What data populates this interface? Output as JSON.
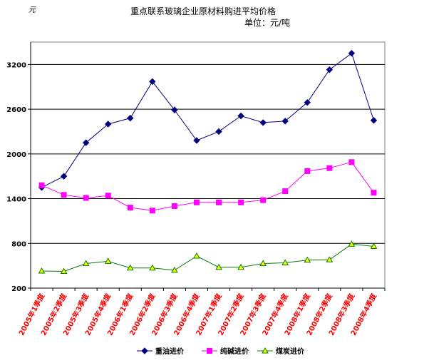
{
  "chart_data": {
    "type": "line",
    "title": "重点联系玻璃企业原材料购进平均价格",
    "subtitle": "单位：元/吨",
    "ylabel": "元",
    "xlabel": "",
    "ylim": [
      200,
      3500
    ],
    "yticks": [
      200,
      800,
      1400,
      2000,
      2600,
      3200
    ],
    "grid": true,
    "legend_position": "bottom",
    "categories": [
      "2005年1季度",
      "2005年2季度",
      "2005年3季度",
      "2005年4季度",
      "2006年1季度",
      "2006年2季度",
      "2006年3季度",
      "2006年4季度",
      "2007年1季度",
      "2007年2季度",
      "2007年3季度",
      "2007年4季度",
      "2008年1季度",
      "2008年2季度",
      "2008年3季度",
      "2008年4季度"
    ],
    "series": [
      {
        "name": "重油进价",
        "color": "#000080",
        "marker": "diamond",
        "values": [
          1550,
          1700,
          2150,
          2400,
          2480,
          2970,
          2590,
          2180,
          2300,
          2510,
          2420,
          2440,
          2690,
          3130,
          3350,
          2450
        ]
      },
      {
        "name": "纯碱进价",
        "color": "#ff00ff",
        "marker": "square",
        "values": [
          1580,
          1450,
          1410,
          1440,
          1280,
          1240,
          1300,
          1350,
          1350,
          1350,
          1380,
          1500,
          1770,
          1810,
          1890,
          1480
        ]
      },
      {
        "name": "煤炭进价",
        "color": "#008000",
        "marker": "triangle",
        "values": [
          430,
          425,
          530,
          560,
          470,
          470,
          440,
          630,
          480,
          480,
          530,
          540,
          575,
          580,
          790,
          760
        ]
      }
    ]
  }
}
